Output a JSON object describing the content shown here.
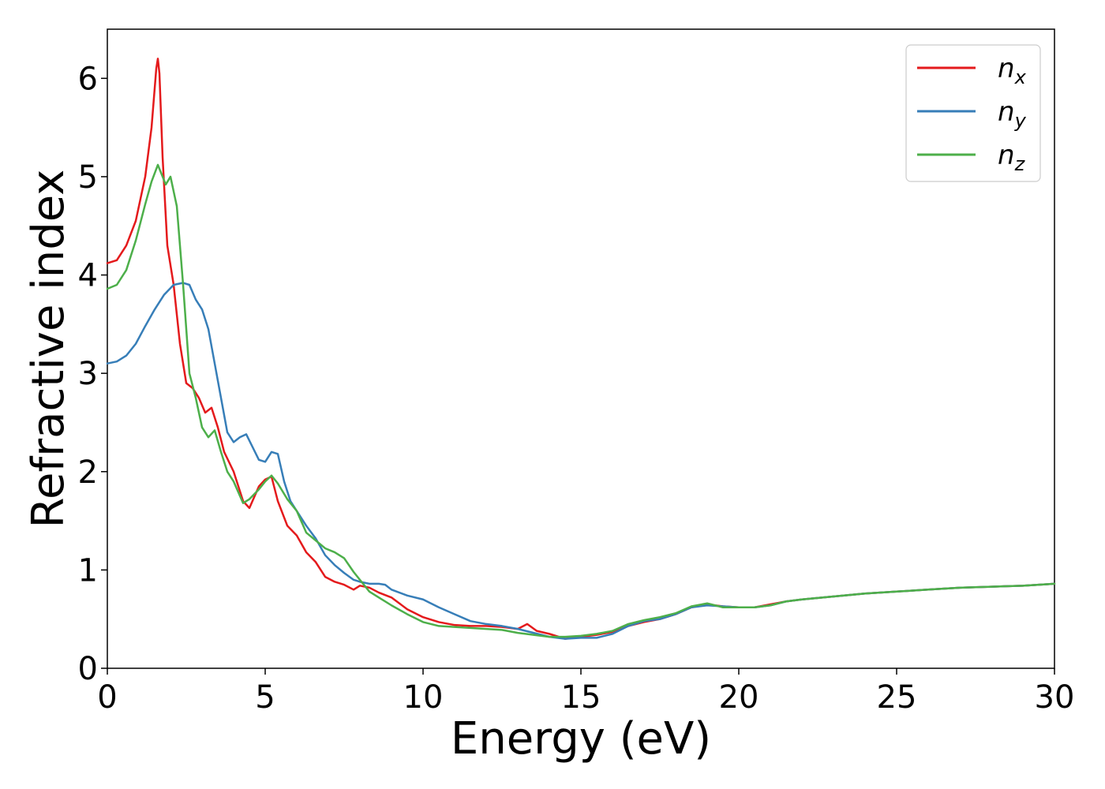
{
  "chart_data": {
    "type": "line",
    "xlabel": "Energy (eV)",
    "ylabel": "Refractive index",
    "xlim": [
      0,
      30
    ],
    "ylim": [
      0,
      6.5
    ],
    "xticks": [
      0,
      5,
      10,
      15,
      20,
      25,
      30
    ],
    "yticks": [
      0,
      1,
      2,
      3,
      4,
      5,
      6
    ],
    "grid": false,
    "legend_position": "top-right",
    "series": [
      {
        "name": "n_x",
        "legend_base": "n",
        "legend_sub": "x",
        "color": "#e41a1c",
        "x": [
          0,
          0.3,
          0.6,
          0.9,
          1.2,
          1.4,
          1.55,
          1.6,
          1.65,
          1.75,
          1.9,
          2.1,
          2.3,
          2.5,
          2.7,
          2.9,
          3.1,
          3.3,
          3.5,
          3.7,
          4.0,
          4.3,
          4.5,
          4.8,
          5.0,
          5.2,
          5.4,
          5.7,
          6.0,
          6.3,
          6.6,
          6.9,
          7.2,
          7.5,
          7.8,
          8.0,
          8.3,
          8.6,
          9.0,
          9.5,
          10.0,
          10.5,
          11.0,
          11.5,
          12.0,
          12.5,
          13.0,
          13.3,
          13.6,
          14.0,
          14.5,
          15.0,
          15.5,
          16.0,
          16.5,
          17.0,
          17.5,
          18.0,
          18.5,
          19.0,
          19.5,
          20.0,
          20.5,
          21.0,
          21.5,
          22.0,
          23.0,
          24.0,
          25.0,
          26.0,
          27.0,
          28.0,
          29.0,
          30.0
        ],
        "y": [
          4.12,
          4.15,
          4.3,
          4.55,
          5.0,
          5.5,
          6.1,
          6.2,
          6.05,
          5.2,
          4.3,
          3.9,
          3.3,
          2.9,
          2.85,
          2.75,
          2.6,
          2.65,
          2.45,
          2.2,
          2.0,
          1.7,
          1.63,
          1.85,
          1.92,
          1.95,
          1.7,
          1.45,
          1.35,
          1.18,
          1.08,
          0.93,
          0.88,
          0.85,
          0.8,
          0.84,
          0.82,
          0.77,
          0.72,
          0.6,
          0.52,
          0.47,
          0.44,
          0.43,
          0.43,
          0.42,
          0.4,
          0.45,
          0.38,
          0.35,
          0.3,
          0.32,
          0.34,
          0.37,
          0.43,
          0.47,
          0.5,
          0.55,
          0.62,
          0.65,
          0.63,
          0.62,
          0.62,
          0.65,
          0.68,
          0.7,
          0.73,
          0.76,
          0.78,
          0.8,
          0.82,
          0.83,
          0.84,
          0.86
        ]
      },
      {
        "name": "n_y",
        "legend_base": "n",
        "legend_sub": "y",
        "color": "#377eb8",
        "x": [
          0,
          0.3,
          0.6,
          0.9,
          1.2,
          1.5,
          1.8,
          2.1,
          2.4,
          2.6,
          2.8,
          3.0,
          3.2,
          3.4,
          3.6,
          3.8,
          4.0,
          4.2,
          4.4,
          4.6,
          4.8,
          5.0,
          5.2,
          5.4,
          5.6,
          5.8,
          6.0,
          6.3,
          6.6,
          6.9,
          7.2,
          7.5,
          7.8,
          8.0,
          8.3,
          8.6,
          8.8,
          9.0,
          9.5,
          10.0,
          10.5,
          11.0,
          11.5,
          12.0,
          12.5,
          13.0,
          13.5,
          14.0,
          14.5,
          15.0,
          15.5,
          16.0,
          16.5,
          17.0,
          17.5,
          18.0,
          18.5,
          19.0,
          19.5,
          20.0,
          20.5,
          21.0,
          21.5,
          22.0,
          23.0,
          24.0,
          25.0,
          26.0,
          27.0,
          28.0,
          29.0,
          30.0
        ],
        "y": [
          3.1,
          3.12,
          3.18,
          3.3,
          3.48,
          3.65,
          3.8,
          3.9,
          3.92,
          3.9,
          3.75,
          3.65,
          3.45,
          3.1,
          2.75,
          2.4,
          2.3,
          2.35,
          2.38,
          2.25,
          2.12,
          2.1,
          2.2,
          2.18,
          1.9,
          1.7,
          1.6,
          1.45,
          1.32,
          1.15,
          1.05,
          0.97,
          0.9,
          0.88,
          0.86,
          0.86,
          0.85,
          0.8,
          0.74,
          0.7,
          0.62,
          0.55,
          0.48,
          0.45,
          0.43,
          0.4,
          0.36,
          0.32,
          0.3,
          0.31,
          0.31,
          0.35,
          0.43,
          0.48,
          0.5,
          0.55,
          0.62,
          0.64,
          0.63,
          0.62,
          0.62,
          0.64,
          0.68,
          0.7,
          0.73,
          0.76,
          0.78,
          0.8,
          0.82,
          0.83,
          0.84,
          0.86
        ]
      },
      {
        "name": "n_z",
        "legend_base": "n",
        "legend_sub": "z",
        "color": "#4daf4a",
        "x": [
          0,
          0.3,
          0.6,
          0.9,
          1.2,
          1.4,
          1.6,
          1.75,
          1.85,
          2.0,
          2.2,
          2.4,
          2.6,
          2.8,
          3.0,
          3.2,
          3.4,
          3.6,
          3.8,
          4.0,
          4.3,
          4.5,
          4.8,
          5.0,
          5.2,
          5.4,
          5.7,
          6.0,
          6.3,
          6.6,
          6.9,
          7.2,
          7.5,
          7.8,
          8.0,
          8.3,
          8.6,
          9.0,
          9.5,
          10.0,
          10.5,
          11.0,
          11.5,
          12.0,
          12.5,
          13.0,
          13.5,
          14.0,
          14.5,
          15.0,
          15.5,
          16.0,
          16.5,
          17.0,
          17.5,
          18.0,
          18.5,
          19.0,
          19.5,
          20.0,
          20.5,
          21.0,
          21.5,
          22.0,
          23.0,
          24.0,
          25.0,
          26.0,
          27.0,
          28.0,
          29.0,
          30.0
        ],
        "y": [
          3.86,
          3.9,
          4.05,
          4.35,
          4.72,
          4.95,
          5.12,
          5.0,
          4.92,
          5.0,
          4.7,
          3.9,
          3.0,
          2.75,
          2.45,
          2.35,
          2.42,
          2.2,
          2.0,
          1.9,
          1.68,
          1.72,
          1.82,
          1.9,
          1.96,
          1.88,
          1.72,
          1.6,
          1.38,
          1.3,
          1.22,
          1.18,
          1.12,
          0.98,
          0.9,
          0.78,
          0.72,
          0.64,
          0.55,
          0.47,
          0.43,
          0.42,
          0.41,
          0.4,
          0.39,
          0.36,
          0.34,
          0.32,
          0.32,
          0.33,
          0.35,
          0.38,
          0.45,
          0.49,
          0.52,
          0.56,
          0.63,
          0.66,
          0.62,
          0.62,
          0.62,
          0.64,
          0.68,
          0.7,
          0.73,
          0.76,
          0.78,
          0.8,
          0.82,
          0.83,
          0.84,
          0.86
        ]
      }
    ]
  }
}
